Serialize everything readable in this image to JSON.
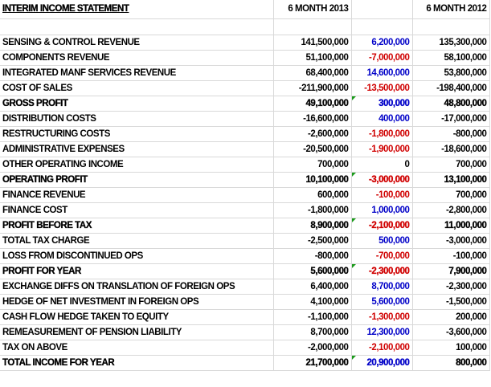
{
  "header": {
    "title": "INTERIM INCOME STATEMENT",
    "col_2013": "6 MONTH 2013",
    "col_change": "",
    "col_2012": "6 MONTH 2012"
  },
  "colors": {
    "positive_change": "#0000c8",
    "negative_change": "#d00000",
    "formula_flag": "#1a9a1a"
  },
  "rows": [
    {
      "label": "SENSING & CONTROL REVENUE",
      "y2013": "141,500,000",
      "change": "6,200,000",
      "y2012": "135,300,000",
      "bold": false,
      "sign": "pos"
    },
    {
      "label": "COMPONENTS REVENUE",
      "y2013": "51,100,000",
      "change": "-7,000,000",
      "y2012": "58,100,000",
      "bold": false,
      "sign": "neg"
    },
    {
      "label": "INTEGRATED MANF SERVICES REVENUE",
      "y2013": "68,400,000",
      "change": "14,600,000",
      "y2012": "53,800,000",
      "bold": false,
      "sign": "pos"
    },
    {
      "label": "COST OF SALES",
      "y2013": "-211,900,000",
      "change": "-13,500,000",
      "y2012": "-198,400,000",
      "bold": false,
      "sign": "neg"
    },
    {
      "label": "GROSS PROFIT",
      "y2013": "49,100,000",
      "change": "300,000",
      "y2012": "48,800,000",
      "bold": true,
      "sign": "pos"
    },
    {
      "label": "DISTRIBUTION COSTS",
      "y2013": "-16,600,000",
      "change": "400,000",
      "y2012": "-17,000,000",
      "bold": false,
      "sign": "pos"
    },
    {
      "label": "RESTRUCTURING COSTS",
      "y2013": "-2,600,000",
      "change": "-1,800,000",
      "y2012": "-800,000",
      "bold": false,
      "sign": "neg"
    },
    {
      "label": "ADMINISTRATIVE EXPENSES",
      "y2013": "-20,500,000",
      "change": "-1,900,000",
      "y2012": "-18,600,000",
      "bold": false,
      "sign": "neg"
    },
    {
      "label": "OTHER OPERATING INCOME",
      "y2013": "700,000",
      "change": "0",
      "y2012": "700,000",
      "bold": false,
      "sign": "zero"
    },
    {
      "label": "OPERATING PROFIT",
      "y2013": "10,100,000",
      "change": "-3,000,000",
      "y2012": "13,100,000",
      "bold": true,
      "sign": "neg"
    },
    {
      "label": "FINANCE REVENUE",
      "y2013": "600,000",
      "change": "-100,000",
      "y2012": "700,000",
      "bold": false,
      "sign": "neg"
    },
    {
      "label": "FINANCE COST",
      "y2013": "-1,800,000",
      "change": "1,000,000",
      "y2012": "-2,800,000",
      "bold": false,
      "sign": "pos"
    },
    {
      "label": "PROFIT BEFORE TAX",
      "y2013": "8,900,000",
      "change": "-2,100,000",
      "y2012": "11,000,000",
      "bold": true,
      "sign": "neg"
    },
    {
      "label": "TOTAL TAX CHARGE",
      "y2013": "-2,500,000",
      "change": "500,000",
      "y2012": "-3,000,000",
      "bold": false,
      "sign": "pos"
    },
    {
      "label": "LOSS FROM DISCONTINUED OPS",
      "y2013": "-800,000",
      "change": "-700,000",
      "y2012": "-100,000",
      "bold": false,
      "sign": "neg"
    },
    {
      "label": "PROFIT FOR YEAR",
      "y2013": "5,600,000",
      "change": "-2,300,000",
      "y2012": "7,900,000",
      "bold": true,
      "sign": "neg"
    },
    {
      "label": "EXCHANGE DIFFS ON TRANSLATION OF FOREIGN OPS",
      "y2013": "6,400,000",
      "change": "8,700,000",
      "y2012": "-2,300,000",
      "bold": false,
      "sign": "pos"
    },
    {
      "label": "HEDGE OF NET INVESTMENT IN FOREIGN OPS",
      "y2013": "4,100,000",
      "change": "5,600,000",
      "y2012": "-1,500,000",
      "bold": false,
      "sign": "pos"
    },
    {
      "label": "CASH FLOW HEDGE TAKEN TO EQUITY",
      "y2013": "-1,100,000",
      "change": "-1,300,000",
      "y2012": "200,000",
      "bold": false,
      "sign": "neg"
    },
    {
      "label": "REMEASUREMENT OF PENSION LIABILITY",
      "y2013": "8,700,000",
      "change": "12,300,000",
      "y2012": "-3,600,000",
      "bold": false,
      "sign": "pos"
    },
    {
      "label": "TAX ON ABOVE",
      "y2013": "-2,000,000",
      "change": "-2,100,000",
      "y2012": "100,000",
      "bold": false,
      "sign": "neg"
    },
    {
      "label": "TOTAL INCOME FOR YEAR",
      "y2013": "21,700,000",
      "change": "20,900,000",
      "y2012": "800,000",
      "bold": true,
      "sign": "pos"
    }
  ]
}
